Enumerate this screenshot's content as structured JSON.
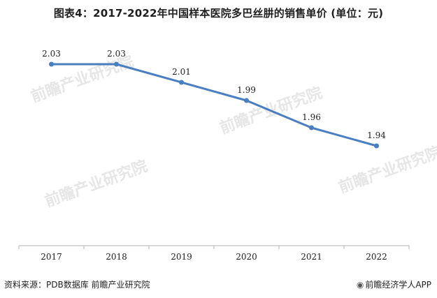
{
  "title": "图表4：2017-2022年中国样本医院多巴丝肼的销售单价 (单位：元)",
  "footer": {
    "source": "资料来源：PDB数据库 前瞻产业研究院",
    "brand": "前瞻经济学人APP",
    "brand_icon": "qianzhan-logo-icon"
  },
  "watermark": {
    "text": "前瞻产业研究院"
  },
  "chart_data": {
    "type": "line",
    "x": [
      "2017",
      "2018",
      "2019",
      "2020",
      "2021",
      "2022"
    ],
    "series": [
      {
        "values": [
          2.03,
          2.03,
          2.01,
          1.99,
          1.96,
          1.94
        ]
      }
    ],
    "data_labels": [
      "2.03",
      "2.03",
      "2.01",
      "1.99",
      "1.96",
      "1.94"
    ],
    "ylim": [
      1.83,
      2.07
    ],
    "grid": false,
    "legend": "none",
    "line_color": "#4a7ec2"
  }
}
